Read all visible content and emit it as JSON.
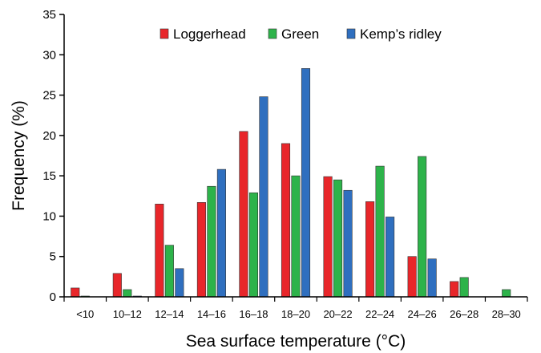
{
  "chart_data": {
    "type": "bar",
    "title": "",
    "xlabel": "Sea surface temperature (°C)",
    "ylabel": "Frequency (%)",
    "ylim": [
      0,
      35
    ],
    "yticks": [
      0,
      5,
      10,
      15,
      20,
      25,
      30,
      35
    ],
    "grid": false,
    "legend_position": "top-center",
    "categories": [
      "<10",
      "10–12",
      "12–14",
      "14–16",
      "16–18",
      "18–20",
      "20–22",
      "22–24",
      "24–26",
      "26–28",
      "28–30"
    ],
    "series": [
      {
        "name": "Loggerhead",
        "color": "#e8262a",
        "values": [
          1.1,
          2.9,
          11.5,
          11.7,
          20.5,
          19.0,
          14.9,
          11.8,
          5.0,
          1.9,
          0.0
        ]
      },
      {
        "name": "Green",
        "color": "#2db34a",
        "values": [
          0.1,
          0.9,
          6.4,
          13.7,
          12.9,
          15.0,
          14.5,
          16.2,
          17.4,
          2.4,
          0.9
        ]
      },
      {
        "name": "Kemp’s ridley",
        "color": "#2f6fbf",
        "values": [
          0.0,
          0.1,
          3.5,
          15.8,
          24.8,
          28.3,
          13.2,
          9.9,
          4.7,
          0.0,
          0.0
        ]
      }
    ]
  }
}
